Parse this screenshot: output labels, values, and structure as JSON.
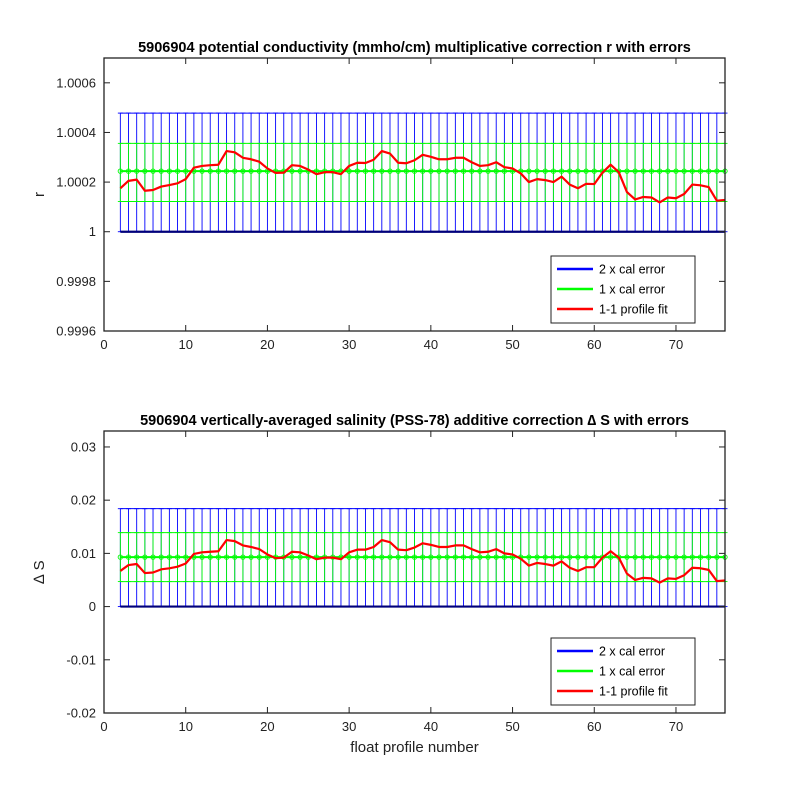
{
  "chart_data": [
    {
      "type": "line",
      "title": "5906904 potential conductivity (mmho/cm) multiplicative correction r with errors",
      "xlabel": "",
      "ylabel": "r",
      "xlim": [
        0,
        76
      ],
      "ylim": [
        0.9996,
        1.0007
      ],
      "x_ticks": [
        0,
        10,
        20,
        30,
        40,
        50,
        60,
        70
      ],
      "x_tick_labels": [
        "0",
        "10",
        "20",
        "30",
        "40",
        "50",
        "60",
        "70"
      ],
      "y_ticks": [
        0.9996,
        0.9998,
        1,
        1.0002,
        1.0004,
        1.0006
      ],
      "y_tick_labels": [
        "0.9996",
        "0.9998",
        "1",
        "1.0002",
        "1.0004",
        "1.0006"
      ],
      "grid": false,
      "legend_position": "bottom-right",
      "reference_line": 1,
      "center_value": 1.000244,
      "x": [
        2,
        3,
        4,
        5,
        6,
        7,
        8,
        9,
        10,
        11,
        12,
        13,
        14,
        15,
        16,
        17,
        18,
        19,
        20,
        21,
        22,
        23,
        24,
        25,
        26,
        27,
        28,
        29,
        30,
        31,
        32,
        33,
        34,
        35,
        36,
        37,
        38,
        39,
        40,
        41,
        42,
        43,
        44,
        45,
        46,
        47,
        48,
        49,
        50,
        51,
        52,
        53,
        54,
        55,
        56,
        57,
        58,
        59,
        60,
        61,
        62,
        63,
        64,
        65,
        66,
        67,
        68,
        69,
        70,
        71,
        72,
        73,
        74,
        75,
        76
      ],
      "series": [
        {
          "name": "2 x cal error",
          "color": "#0000ff",
          "style": "errorbar",
          "lower": 1.0,
          "upper": 1.000478
        },
        {
          "name": "1 x cal error",
          "color": "#00ff00",
          "style": "errorbar",
          "lower": 1.000122,
          "upper": 1.000356
        },
        {
          "name": "1-1 profile fit",
          "color": "#ff0000",
          "style": "line",
          "values": [
            1.000175,
            1.000205,
            1.00021,
            1.000165,
            1.000168,
            1.000182,
            1.000188,
            1.000195,
            1.000212,
            1.000258,
            1.000265,
            1.000268,
            1.00027,
            1.000325,
            1.00032,
            1.000298,
            1.000292,
            1.000282,
            1.000255,
            1.000237,
            1.000238,
            1.000268,
            1.000265,
            1.00025,
            1.000232,
            1.00024,
            1.00024,
            1.000232,
            1.000265,
            1.000278,
            1.000277,
            1.00029,
            1.000325,
            1.000315,
            1.000278,
            1.000276,
            1.000288,
            1.00031,
            1.000302,
            1.000292,
            1.000292,
            1.000298,
            1.000298,
            1.00028,
            1.000265,
            1.000268,
            1.00028,
            1.00026,
            1.000255,
            1.000235,
            1.0002,
            1.000212,
            1.000208,
            1.0002,
            1.000222,
            1.00019,
            1.000175,
            1.000193,
            1.000192,
            1.000238,
            1.00027,
            1.00024,
            1.00016,
            1.00013,
            1.00014,
            1.000138,
            1.000118,
            1.000138,
            1.000135,
            1.000152,
            1.00019,
            1.000187,
            1.00018,
            1.000125,
            1.000128
          ]
        }
      ]
    },
    {
      "type": "line",
      "title": "5906904 vertically-averaged salinity (PSS-78) additive correction ∆ S with errors",
      "xlabel": "float profile number",
      "ylabel": "∆ S",
      "xlim": [
        0,
        76
      ],
      "ylim": [
        -0.02,
        0.033
      ],
      "x_ticks": [
        0,
        10,
        20,
        30,
        40,
        50,
        60,
        70
      ],
      "x_tick_labels": [
        "0",
        "10",
        "20",
        "30",
        "40",
        "50",
        "60",
        "70"
      ],
      "y_ticks": [
        -0.02,
        -0.01,
        0,
        0.01,
        0.02,
        0.03
      ],
      "y_tick_labels": [
        "-0.02",
        "-0.01",
        "0",
        "0.01",
        "0.02",
        "0.03"
      ],
      "grid": false,
      "legend_position": "bottom-right",
      "reference_line": 0,
      "center_value": 0.0093,
      "x": [
        2,
        3,
        4,
        5,
        6,
        7,
        8,
        9,
        10,
        11,
        12,
        13,
        14,
        15,
        16,
        17,
        18,
        19,
        20,
        21,
        22,
        23,
        24,
        25,
        26,
        27,
        28,
        29,
        30,
        31,
        32,
        33,
        34,
        35,
        36,
        37,
        38,
        39,
        40,
        41,
        42,
        43,
        44,
        45,
        46,
        47,
        48,
        49,
        50,
        51,
        52,
        53,
        54,
        55,
        56,
        57,
        58,
        59,
        60,
        61,
        62,
        63,
        64,
        65,
        66,
        67,
        68,
        69,
        70,
        71,
        72,
        73,
        74,
        75,
        76
      ],
      "series": [
        {
          "name": "2 x cal error",
          "color": "#0000ff",
          "style": "errorbar",
          "lower": 0.0,
          "upper": 0.0184
        },
        {
          "name": "1 x cal error",
          "color": "#00ff00",
          "style": "errorbar",
          "lower": 0.0047,
          "upper": 0.0139
        },
        {
          "name": "1-1 profile fit",
          "color": "#ff0000",
          "style": "line",
          "values": [
            0.0067,
            0.0078,
            0.008,
            0.0063,
            0.0064,
            0.007,
            0.0072,
            0.0075,
            0.0081,
            0.0099,
            0.0102,
            0.0103,
            0.0104,
            0.0125,
            0.0123,
            0.0115,
            0.0112,
            0.0108,
            0.0098,
            0.0091,
            0.0092,
            0.0103,
            0.0102,
            0.0096,
            0.0089,
            0.0092,
            0.0092,
            0.0089,
            0.0102,
            0.0107,
            0.0107,
            0.0112,
            0.0125,
            0.0121,
            0.0107,
            0.0106,
            0.0111,
            0.0119,
            0.0116,
            0.0112,
            0.0112,
            0.0115,
            0.0115,
            0.0108,
            0.0102,
            0.0103,
            0.0108,
            0.01,
            0.0098,
            0.009,
            0.0077,
            0.0082,
            0.008,
            0.0077,
            0.0085,
            0.0073,
            0.0067,
            0.0074,
            0.0074,
            0.0092,
            0.0104,
            0.0092,
            0.0062,
            0.005,
            0.0054,
            0.0053,
            0.0045,
            0.0053,
            0.0052,
            0.0059,
            0.0073,
            0.0072,
            0.0069,
            0.0048,
            0.0049
          ]
        }
      ]
    }
  ]
}
